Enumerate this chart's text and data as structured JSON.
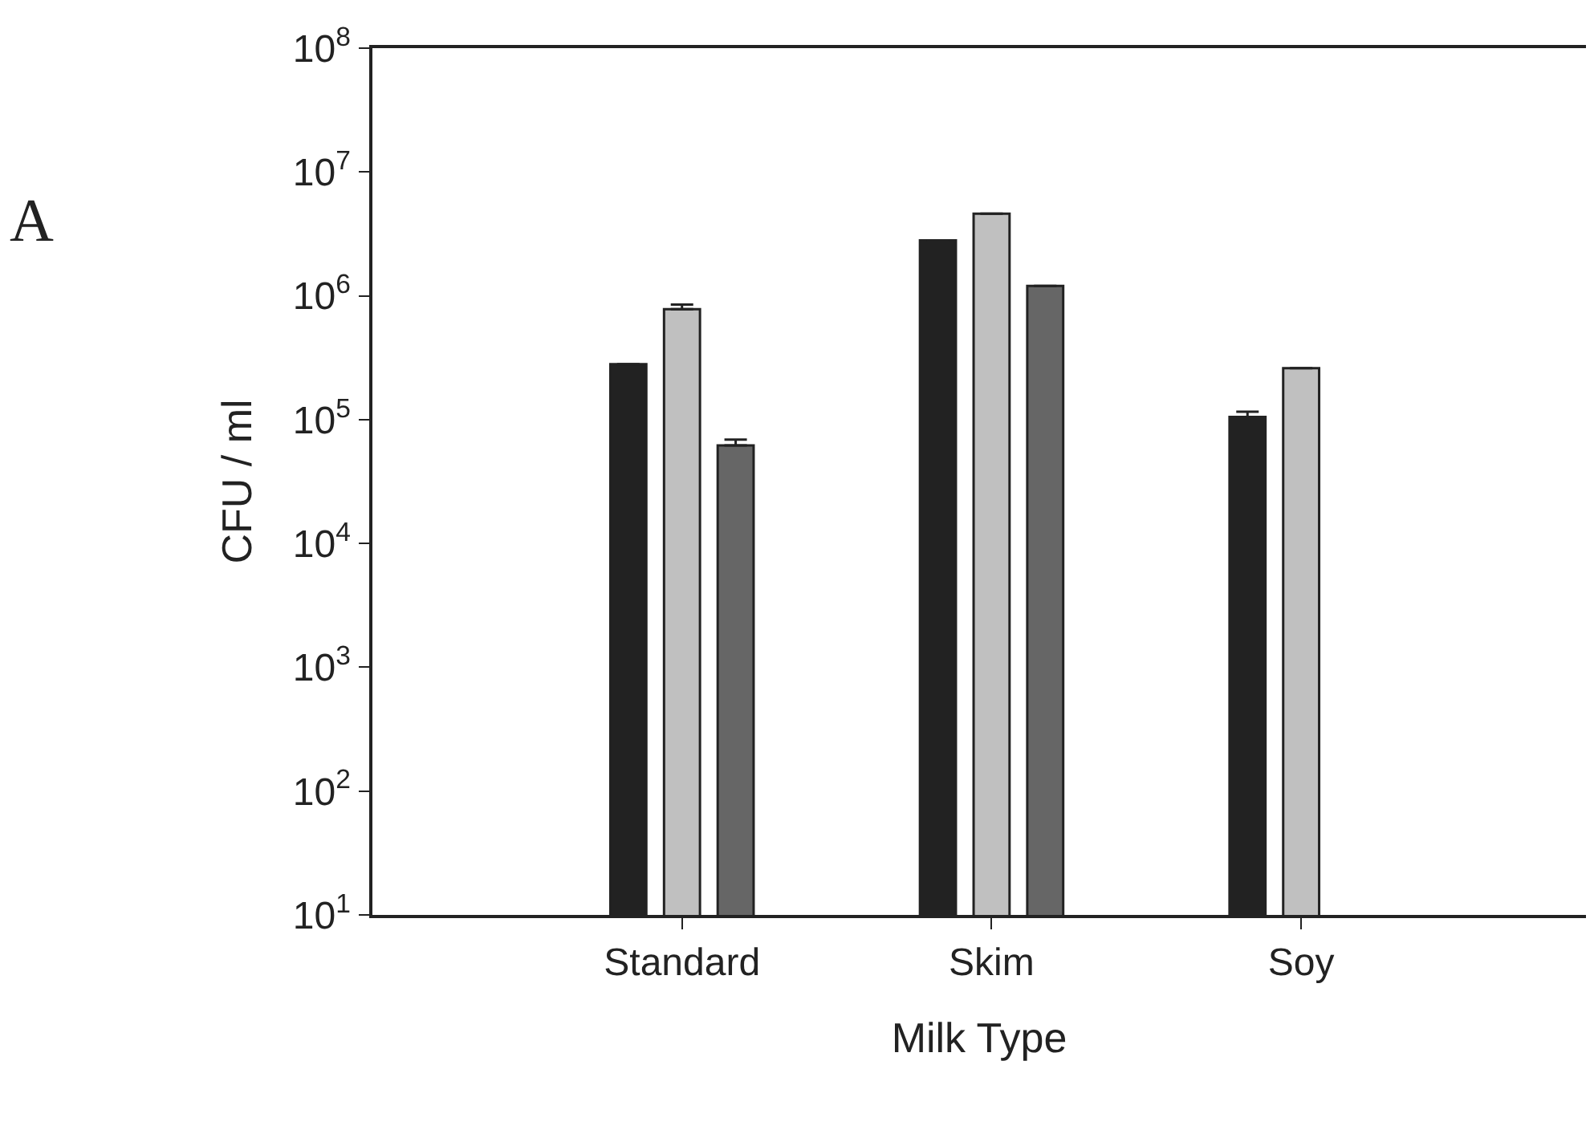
{
  "chart_data": {
    "type": "bar",
    "xlabel": "Milk Type",
    "ylabel": "CFU / ml",
    "categories": [
      "Standard",
      "Skim",
      "Soy"
    ],
    "series": [
      {
        "color": "#222222",
        "values": [
          280000,
          2800000,
          105000
        ],
        "errors": [
          null,
          null,
          [
            105000,
            116000
          ]
        ]
      },
      {
        "color": "#c0c0c0",
        "values": [
          780000,
          4600000,
          260000
        ],
        "errors": [
          [
            780000,
            850000
          ],
          null,
          null
        ]
      },
      {
        "color": "#666666",
        "values": [
          62000,
          1200000,
          null
        ],
        "errors": [
          [
            62000,
            69000
          ],
          null,
          null
        ]
      }
    ],
    "log": true,
    "ylim": [
      10,
      100000000
    ],
    "yticks": [
      {
        "value": 10,
        "label": "10$^{1}$"
      },
      {
        "value": 100,
        "label": "10$^{2}$"
      },
      {
        "value": 1000,
        "label": "10$^{3}$"
      },
      {
        "value": 10000,
        "label": "10$^{4}$"
      },
      {
        "value": 100000,
        "label": "10$^{5}$"
      },
      {
        "value": 1000000,
        "label": "10$^{6}$"
      },
      {
        "value": 10000000,
        "label": "10$^{7}$"
      },
      {
        "value": 100000000,
        "label": "10$^{8}$"
      }
    ],
    "annotations": [
      "A"
    ]
  }
}
